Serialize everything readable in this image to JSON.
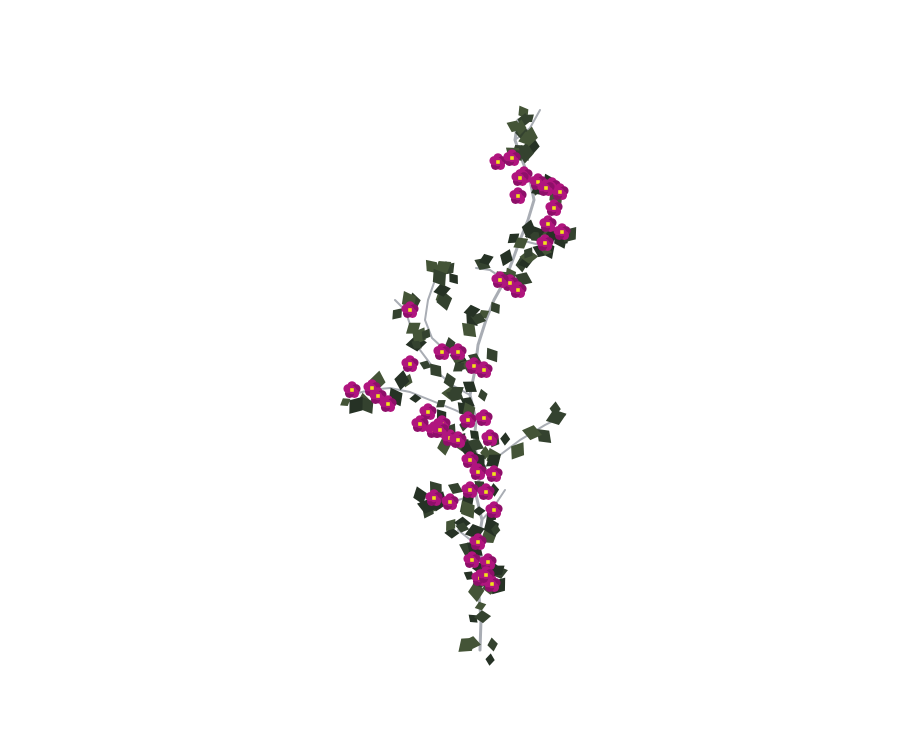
{
  "image": {
    "subject": "flowering-vine",
    "background_color": "#ffffff"
  },
  "palette": {
    "stem": "#a9adb4",
    "leaf_dark": "#263225",
    "leaf_mid": "#34422f",
    "leaf_light": "#445437",
    "flower_petal": "#b0157e",
    "flower_petal_dark": "#8e0f69",
    "flower_center": "#f2e21a"
  },
  "counts": {
    "flowers": 50,
    "leaves": 165
  }
}
